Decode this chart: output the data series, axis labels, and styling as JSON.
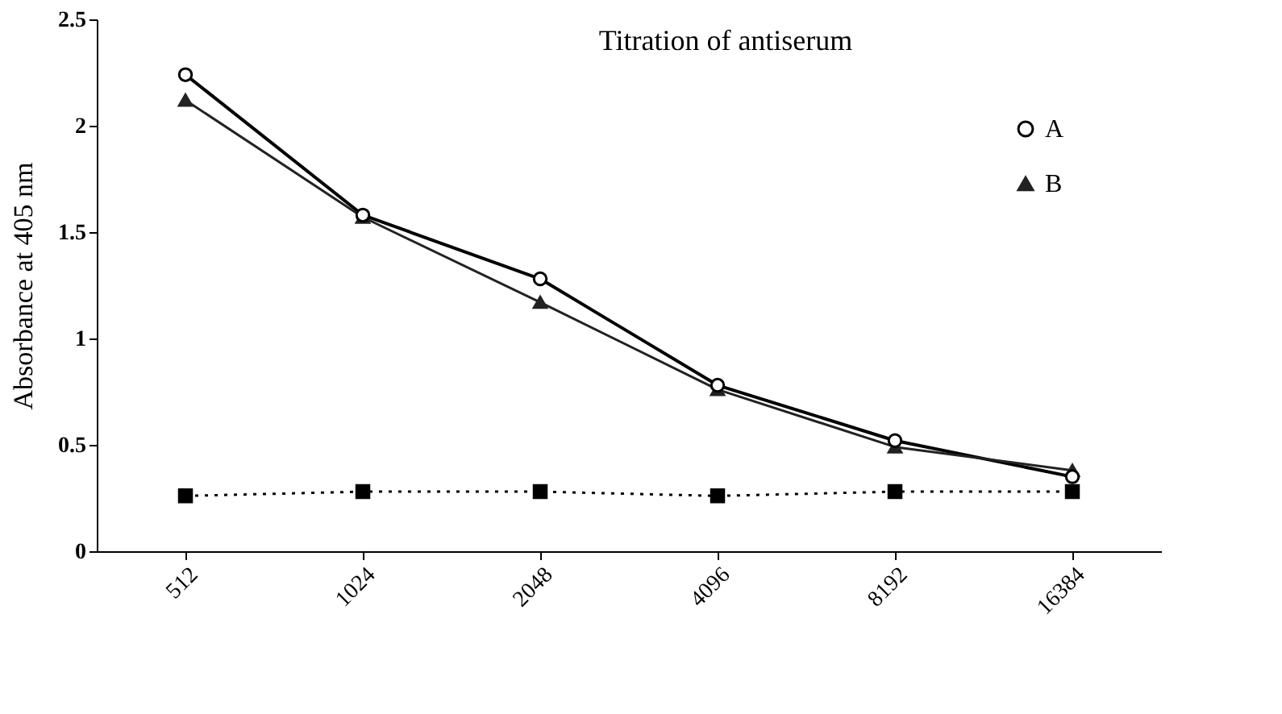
{
  "chart_data": {
    "type": "line",
    "title": "Titration of antiserum",
    "ylabel": "Absorbance at 405 nm",
    "categories": [
      "512",
      "1024",
      "2048",
      "4096",
      "8192",
      "16384"
    ],
    "series": [
      {
        "name": "A",
        "color": "#000000",
        "marker": "circle",
        "line_style": "solid",
        "values": [
          2.24,
          1.58,
          1.28,
          0.78,
          0.52,
          0.35
        ]
      },
      {
        "name": "B",
        "color": "#222222",
        "marker": "triangle",
        "line_style": "solid",
        "values": [
          2.12,
          1.57,
          1.17,
          0.76,
          0.49,
          0.38
        ]
      },
      {
        "color": "#000000",
        "marker": "square",
        "line_style": "dotted",
        "values": [
          0.26,
          0.28,
          0.28,
          0.26,
          0.28,
          0.28
        ]
      }
    ],
    "ylim": [
      0,
      2.5
    ],
    "yticks": [
      0,
      0.5,
      1,
      1.5,
      2,
      2.5
    ],
    "grid": false,
    "legend": "top right"
  }
}
